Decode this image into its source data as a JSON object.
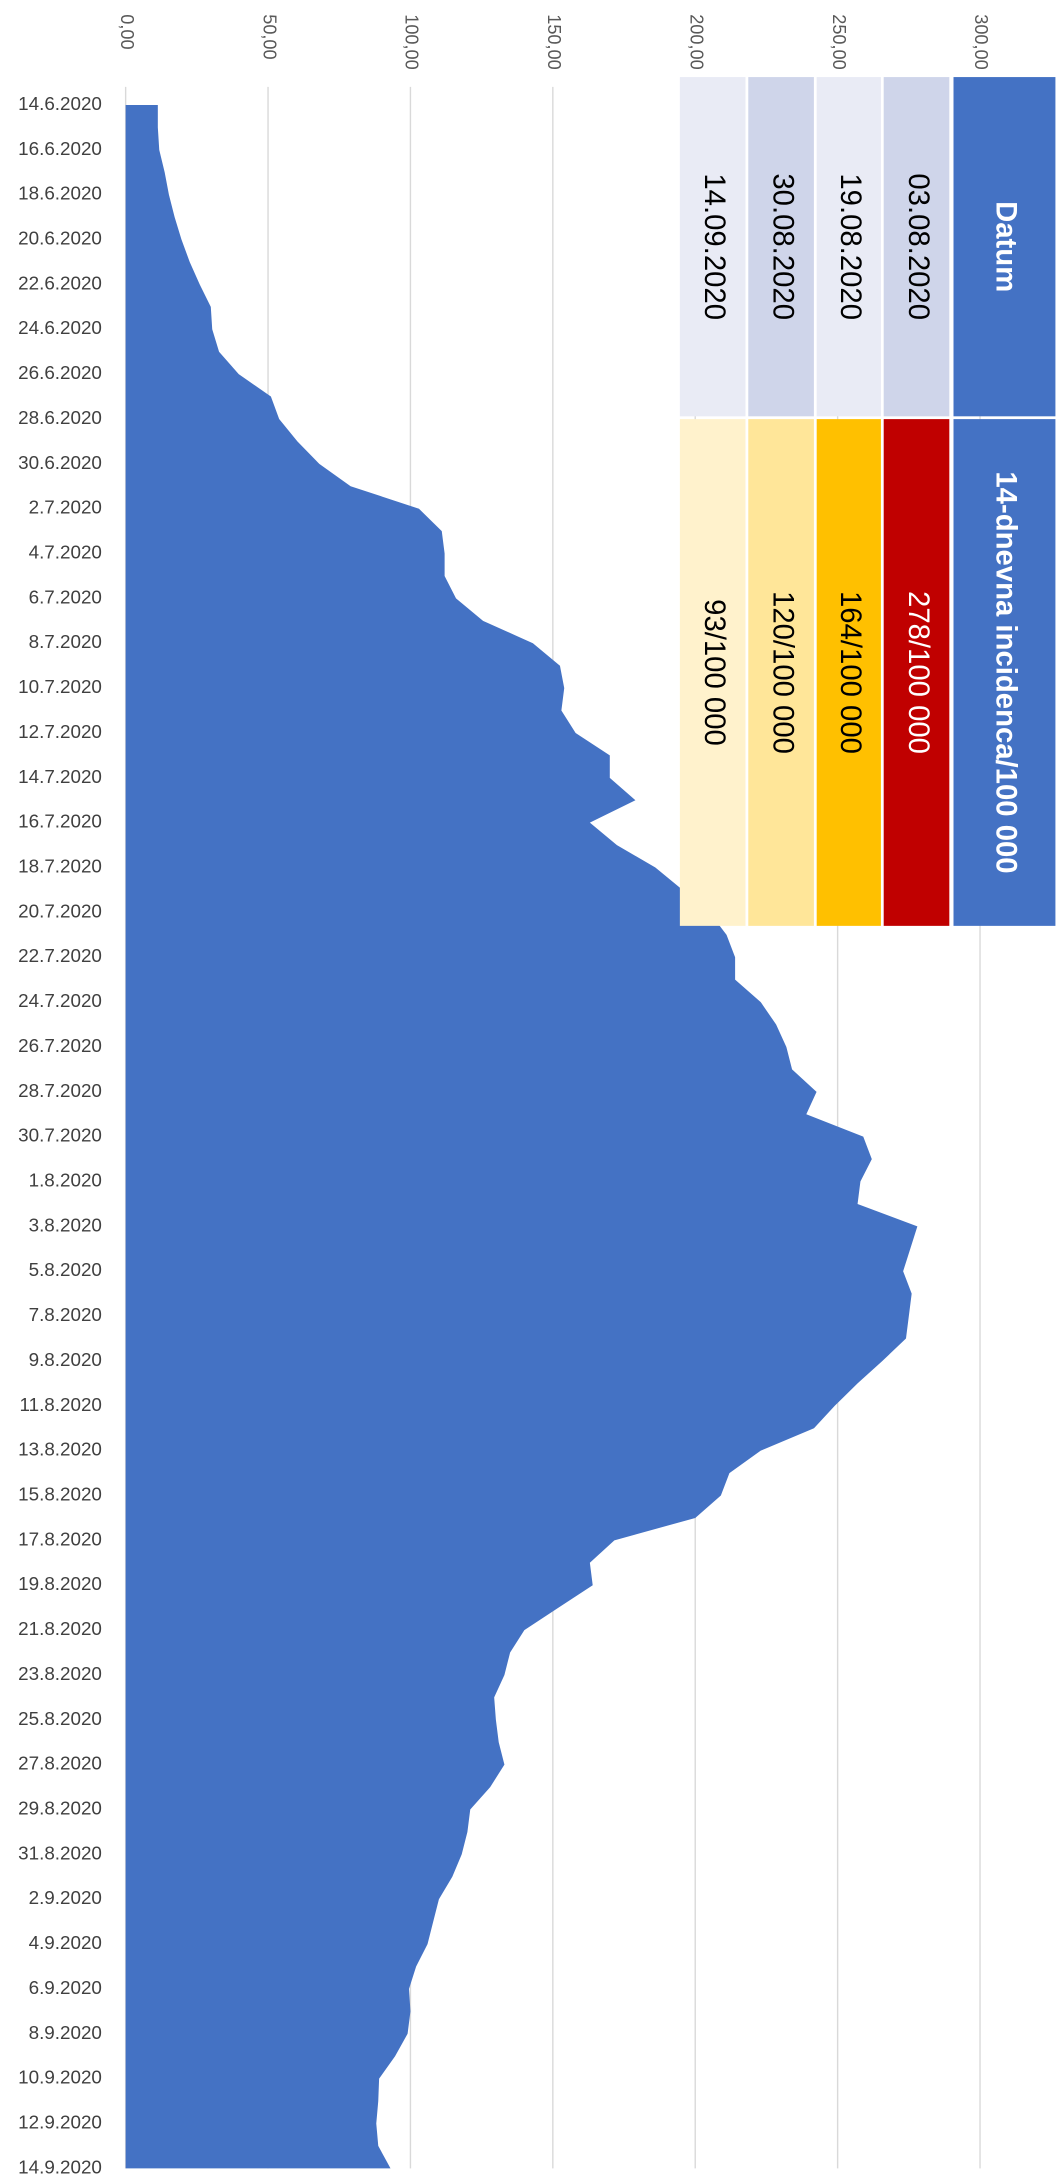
{
  "chart_data": {
    "type": "area",
    "color": "#4472c4",
    "grid": true,
    "categories": [
      "14.6.2020",
      null,
      "16.6.2020",
      null,
      "18.6.2020",
      null,
      "20.6.2020",
      null,
      "22.6.2020",
      null,
      "24.6.2020",
      null,
      "26.6.2020",
      null,
      "28.6.2020",
      null,
      "30.6.2020",
      null,
      "2.7.2020",
      null,
      "4.7.2020",
      null,
      "6.7.2020",
      null,
      "8.7.2020",
      null,
      "10.7.2020",
      null,
      "12.7.2020",
      null,
      "14.7.2020",
      null,
      "16.7.2020",
      null,
      "18.7.2020",
      null,
      "20.7.2020",
      null,
      "22.7.2020",
      null,
      "24.7.2020",
      null,
      "26.7.2020",
      null,
      "28.7.2020",
      null,
      "30.7.2020",
      null,
      "1.8.2020",
      null,
      "3.8.2020",
      null,
      "5.8.2020",
      null,
      "7.8.2020",
      null,
      "9.8.2020",
      null,
      "11.8.2020",
      null,
      "13.8.2020",
      null,
      "15.8.2020",
      null,
      "17.8.2020",
      null,
      "19.8.2020",
      null,
      "21.8.2020",
      null,
      "23.8.2020",
      null,
      "25.8.2020",
      null,
      "27.8.2020",
      null,
      "29.8.2020",
      null,
      "31.8.2020",
      null,
      "2.9.2020",
      null,
      "4.9.2020",
      null,
      "6.9.2020",
      null,
      "8.9.2020",
      null,
      "10.9.2020",
      null,
      "12.9.2020",
      null,
      "14.9.2020"
    ],
    "values": [
      11.3,
      11.3,
      11.8,
      13.7,
      15.2,
      17.2,
      19.6,
      22.5,
      26,
      29.9,
      30.4,
      32.8,
      39.7,
      51,
      53.9,
      60.3,
      68,
      79,
      103,
      111,
      112,
      112,
      116,
      125.5,
      143,
      152.5,
      154,
      153,
      158,
      170,
      170,
      179,
      163,
      172.5,
      186,
      195.6,
      205,
      211,
      214,
      214,
      223,
      228.4,
      232,
      234,
      242.6,
      239,
      259,
      262,
      258,
      257,
      278,
      275.5,
      273,
      276,
      275,
      274,
      265.7,
      257,
      249,
      241.7,
      223,
      212,
      209,
      200,
      171.6,
      163,
      164,
      152,
      140,
      135,
      133,
      129.4,
      130,
      131,
      133,
      128,
      121,
      120,
      118,
      114.7,
      110,
      108,
      106,
      102,
      99.5,
      100,
      99,
      94.6,
      89,
      88.7,
      88,
      88.7,
      93
    ],
    "ylim": [
      0,
      300
    ],
    "yticks": [
      {
        "value": 0,
        "label": "0,00"
      },
      {
        "value": 50,
        "label": "50,00"
      },
      {
        "value": 100,
        "label": "100,00"
      },
      {
        "value": 150,
        "label": "150,00"
      },
      {
        "value": 200,
        "label": "200,00"
      },
      {
        "value": 250,
        "label": "250,00"
      },
      {
        "value": 300,
        "label": "300,00"
      }
    ]
  },
  "table": {
    "header": [
      "Datum",
      "14-dnevna incidenca/100 000"
    ],
    "rows": [
      [
        "03.08.2020",
        "278/100 000"
      ],
      [
        "19.08.2020",
        "164/100 000"
      ],
      [
        "30.08.2020",
        "120/100 000"
      ],
      [
        "14.09.2020",
        "93/100 000"
      ]
    ]
  }
}
